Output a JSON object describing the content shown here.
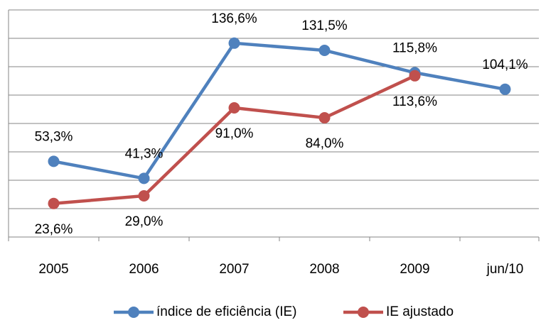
{
  "chart_data": {
    "type": "line",
    "categories": [
      "2005",
      "2006",
      "2007",
      "2008",
      "2009",
      "jun/10"
    ],
    "series": [
      {
        "name": "índice de eficiência (IE)",
        "color": "#4f81bd",
        "values": [
          53.3,
          41.3,
          136.6,
          131.5,
          115.8,
          104.1
        ],
        "value_labels": [
          "53,3%",
          "41,3%",
          "136,6%",
          "131,5%",
          "115,8%",
          "104,1%"
        ]
      },
      {
        "name": "IE ajustado",
        "color": "#c0504d",
        "values": [
          23.6,
          29.0,
          91.0,
          84.0,
          113.6,
          null
        ],
        "value_labels": [
          "23,6%",
          "29,0%",
          "91,0%",
          "84,0%",
          "113,6%",
          null
        ]
      }
    ],
    "ylim": [
      0,
      160
    ],
    "yticks": [
      0,
      20,
      40,
      60,
      80,
      100,
      120,
      140,
      160
    ],
    "grid": true
  }
}
